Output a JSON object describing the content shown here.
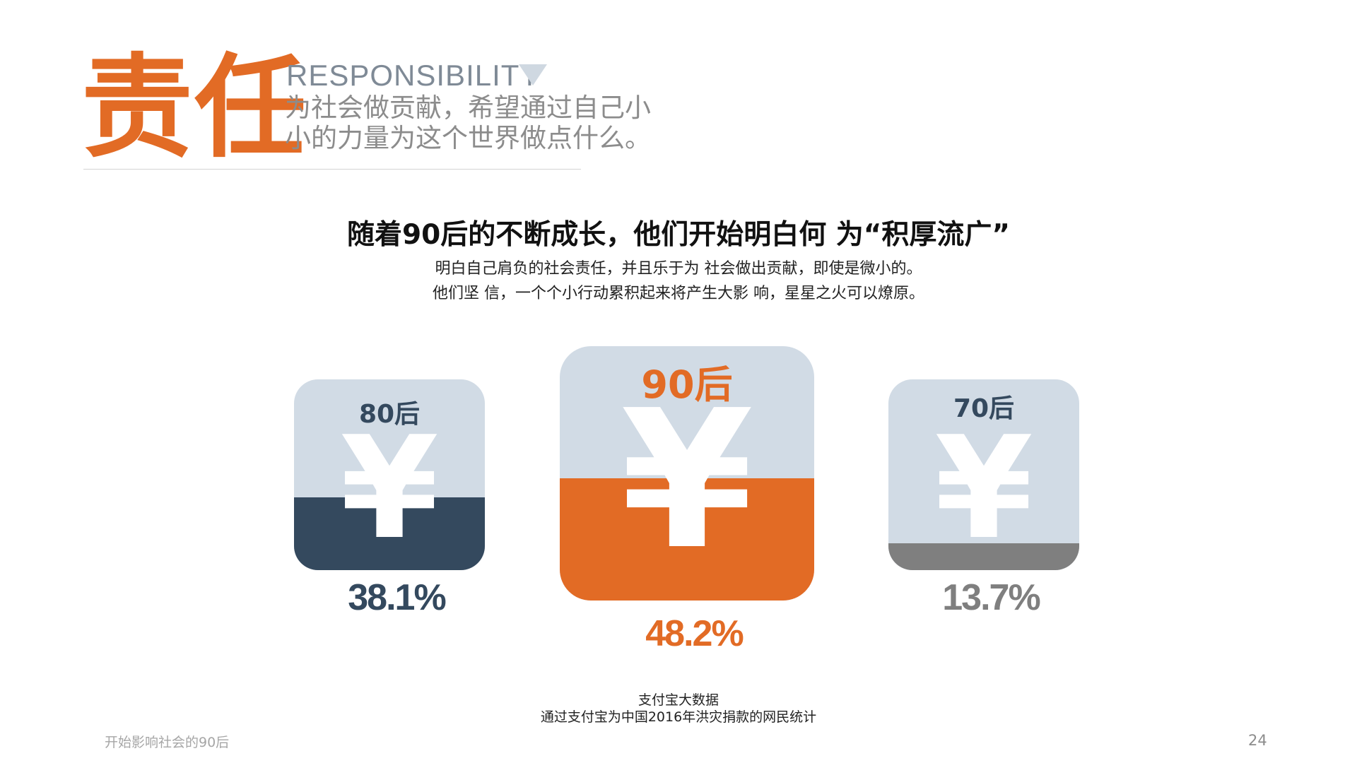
{
  "header": {
    "title": "责任",
    "title_en": "RESPONSIBILITY",
    "subtitle": "为社会做贡献，希望通过自己小小的力量为这个世界做点什么。"
  },
  "intro": {
    "headline": "随着90后的不断成长，他们开始明白何 为“积厚流广”",
    "line1": "明白自己肩负的社会责任，并且乐于为 社会做出贡献，即使是微小的。",
    "line2": "他们坚 信，一个个小行动累积起来将产生大影 响，星星之火可以燎原。"
  },
  "cards": [
    {
      "generation": "80后",
      "symbol": "¥",
      "percent": "38.1%",
      "value": 38.1,
      "fill_fraction": 0.38,
      "fill_color": "#34495e",
      "text_color": "#34495e"
    },
    {
      "generation": "90后",
      "symbol": "¥",
      "percent": "48.2%",
      "value": 48.2,
      "fill_fraction": 0.48,
      "fill_color": "#e26b25",
      "text_color": "#e26b25"
    },
    {
      "generation": "70后",
      "symbol": "¥",
      "percent": "13.7%",
      "value": 13.7,
      "fill_fraction": 0.14,
      "fill_color": "#7f7f7f",
      "text_color": "#7f7f7f"
    }
  ],
  "source": {
    "line1": "支付宝大数据",
    "line2": "通过支付宝为中国2016年洪灾捐款的网民统计"
  },
  "footer": {
    "text": "开始影响社会的90后",
    "page_number": "24"
  },
  "colors": {
    "accent": "#e26b25",
    "card_bg": "#d1dbe5",
    "navy": "#34495e",
    "gray": "#7f7f7f"
  }
}
